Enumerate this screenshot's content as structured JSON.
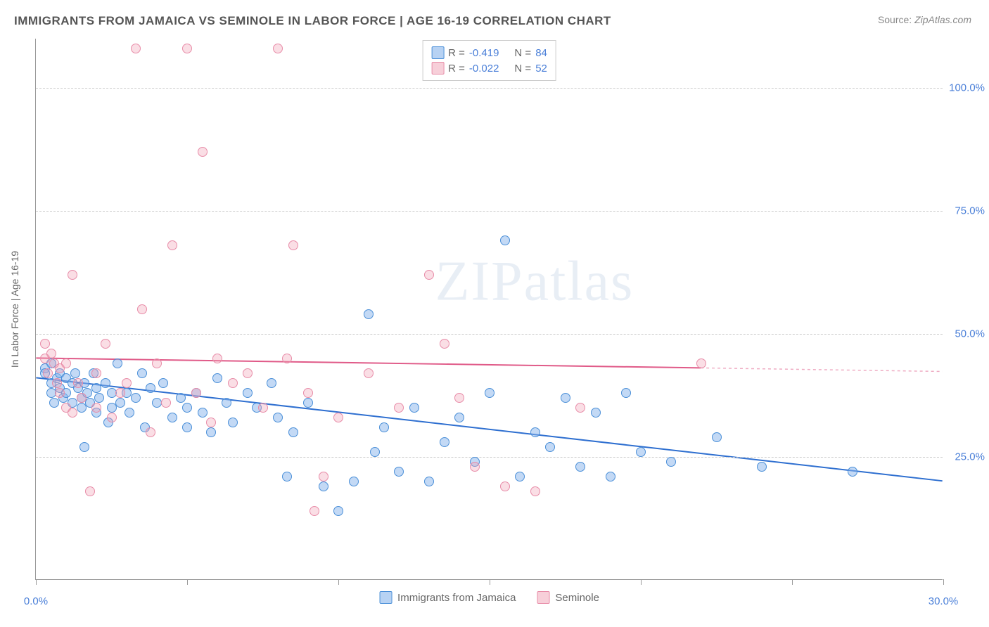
{
  "title": "IMMIGRANTS FROM JAMAICA VS SEMINOLE IN LABOR FORCE | AGE 16-19 CORRELATION CHART",
  "source_label": "Source:",
  "source_name": "ZipAtlas.com",
  "y_axis_label": "In Labor Force | Age 16-19",
  "watermark": "ZIPatlas",
  "chart": {
    "type": "scatter",
    "xlim": [
      0,
      30
    ],
    "ylim": [
      0,
      110
    ],
    "x_ticks": [
      0,
      5,
      10,
      15,
      20,
      25,
      30
    ],
    "x_tick_labels": [
      "0.0%",
      "",
      "",
      "",
      "",
      "",
      "30.0%"
    ],
    "y_ticks": [
      25,
      50,
      75,
      100
    ],
    "y_tick_labels": [
      "25.0%",
      "50.0%",
      "75.0%",
      "100.0%"
    ],
    "background_color": "#ffffff",
    "grid_color": "#cccccc",
    "axis_color": "#999999",
    "label_color": "#4a7fd8",
    "point_radius": 7,
    "series": [
      {
        "name": "Immigrants from Jamaica",
        "color_fill": "rgba(135,180,235,0.5)",
        "color_stroke": "#4a8fd8",
        "r": -0.419,
        "n": 84,
        "trend": {
          "x1": 0,
          "y1": 41,
          "x2": 30,
          "y2": 20,
          "color": "#2e6fd0",
          "width": 2,
          "dash_after_x": 30
        },
        "points": [
          [
            0.3,
            43
          ],
          [
            0.3,
            42
          ],
          [
            0.5,
            40
          ],
          [
            0.5,
            44
          ],
          [
            0.5,
            38
          ],
          [
            0.6,
            36
          ],
          [
            0.7,
            41
          ],
          [
            0.8,
            42
          ],
          [
            0.8,
            39
          ],
          [
            0.9,
            37
          ],
          [
            1.0,
            41
          ],
          [
            1.0,
            38
          ],
          [
            1.2,
            40
          ],
          [
            1.2,
            36
          ],
          [
            1.3,
            42
          ],
          [
            1.4,
            39
          ],
          [
            1.5,
            37
          ],
          [
            1.5,
            35
          ],
          [
            1.6,
            40
          ],
          [
            1.7,
            38
          ],
          [
            1.6,
            27
          ],
          [
            1.8,
            36
          ],
          [
            1.9,
            42
          ],
          [
            2.0,
            39
          ],
          [
            2.0,
            34
          ],
          [
            2.1,
            37
          ],
          [
            2.3,
            40
          ],
          [
            2.4,
            32
          ],
          [
            2.5,
            35
          ],
          [
            2.5,
            38
          ],
          [
            2.7,
            44
          ],
          [
            2.8,
            36
          ],
          [
            3.0,
            38
          ],
          [
            3.1,
            34
          ],
          [
            3.3,
            37
          ],
          [
            3.5,
            42
          ],
          [
            3.6,
            31
          ],
          [
            3.8,
            39
          ],
          [
            4.0,
            36
          ],
          [
            4.2,
            40
          ],
          [
            4.5,
            33
          ],
          [
            4.8,
            37
          ],
          [
            5.0,
            35
          ],
          [
            5.0,
            31
          ],
          [
            5.3,
            38
          ],
          [
            5.5,
            34
          ],
          [
            5.8,
            30
          ],
          [
            6.0,
            41
          ],
          [
            6.3,
            36
          ],
          [
            6.5,
            32
          ],
          [
            7.0,
            38
          ],
          [
            7.3,
            35
          ],
          [
            7.8,
            40
          ],
          [
            8.0,
            33
          ],
          [
            8.3,
            21
          ],
          [
            8.5,
            30
          ],
          [
            9.0,
            36
          ],
          [
            9.5,
            19
          ],
          [
            10.0,
            14
          ],
          [
            10.5,
            20
          ],
          [
            11.0,
            54
          ],
          [
            11.2,
            26
          ],
          [
            11.5,
            31
          ],
          [
            12.0,
            22
          ],
          [
            12.5,
            35
          ],
          [
            13.0,
            20
          ],
          [
            13.5,
            28
          ],
          [
            14.0,
            33
          ],
          [
            14.5,
            24
          ],
          [
            15.0,
            38
          ],
          [
            15.5,
            69
          ],
          [
            16.0,
            21
          ],
          [
            16.5,
            30
          ],
          [
            17.0,
            27
          ],
          [
            17.5,
            37
          ],
          [
            18.0,
            23
          ],
          [
            18.5,
            34
          ],
          [
            19.0,
            21
          ],
          [
            19.5,
            38
          ],
          [
            20.0,
            26
          ],
          [
            21.0,
            24
          ],
          [
            22.5,
            29
          ],
          [
            24.0,
            23
          ],
          [
            27.0,
            22
          ]
        ]
      },
      {
        "name": "Seminole",
        "color_fill": "rgba(240,160,180,0.35)",
        "color_stroke": "#e88ca8",
        "r": -0.022,
        "n": 52,
        "trend": {
          "x1": 0,
          "y1": 45,
          "x2": 22,
          "y2": 43,
          "color": "#e05a88",
          "width": 2,
          "dash_after_x": 22
        },
        "points": [
          [
            0.3,
            48
          ],
          [
            0.3,
            45
          ],
          [
            0.4,
            42
          ],
          [
            0.5,
            46
          ],
          [
            0.6,
            44
          ],
          [
            0.7,
            40
          ],
          [
            0.8,
            43
          ],
          [
            0.8,
            38
          ],
          [
            1.0,
            44
          ],
          [
            1.0,
            35
          ],
          [
            1.2,
            62
          ],
          [
            1.2,
            34
          ],
          [
            1.4,
            40
          ],
          [
            1.5,
            37
          ],
          [
            1.8,
            18
          ],
          [
            2.0,
            42
          ],
          [
            2.0,
            35
          ],
          [
            2.3,
            48
          ],
          [
            2.5,
            33
          ],
          [
            2.8,
            38
          ],
          [
            3.0,
            40
          ],
          [
            3.3,
            108
          ],
          [
            3.5,
            55
          ],
          [
            3.8,
            30
          ],
          [
            4.0,
            44
          ],
          [
            4.3,
            36
          ],
          [
            4.5,
            68
          ],
          [
            5.0,
            108
          ],
          [
            5.3,
            38
          ],
          [
            5.5,
            87
          ],
          [
            5.8,
            32
          ],
          [
            6.0,
            45
          ],
          [
            6.5,
            40
          ],
          [
            7.0,
            42
          ],
          [
            7.5,
            35
          ],
          [
            8.0,
            108
          ],
          [
            8.3,
            45
          ],
          [
            8.5,
            68
          ],
          [
            9.0,
            38
          ],
          [
            9.2,
            14
          ],
          [
            9.5,
            21
          ],
          [
            10.0,
            33
          ],
          [
            11.0,
            42
          ],
          [
            12.0,
            35
          ],
          [
            13.0,
            62
          ],
          [
            13.5,
            48
          ],
          [
            14.0,
            37
          ],
          [
            14.5,
            23
          ],
          [
            15.5,
            19
          ],
          [
            16.5,
            18
          ],
          [
            18.0,
            35
          ],
          [
            22.0,
            44
          ]
        ]
      }
    ]
  },
  "top_legend": {
    "r_label": "R =",
    "n_label": "N ="
  },
  "bottom_legend": {
    "items": [
      "Immigrants from Jamaica",
      "Seminole"
    ]
  }
}
